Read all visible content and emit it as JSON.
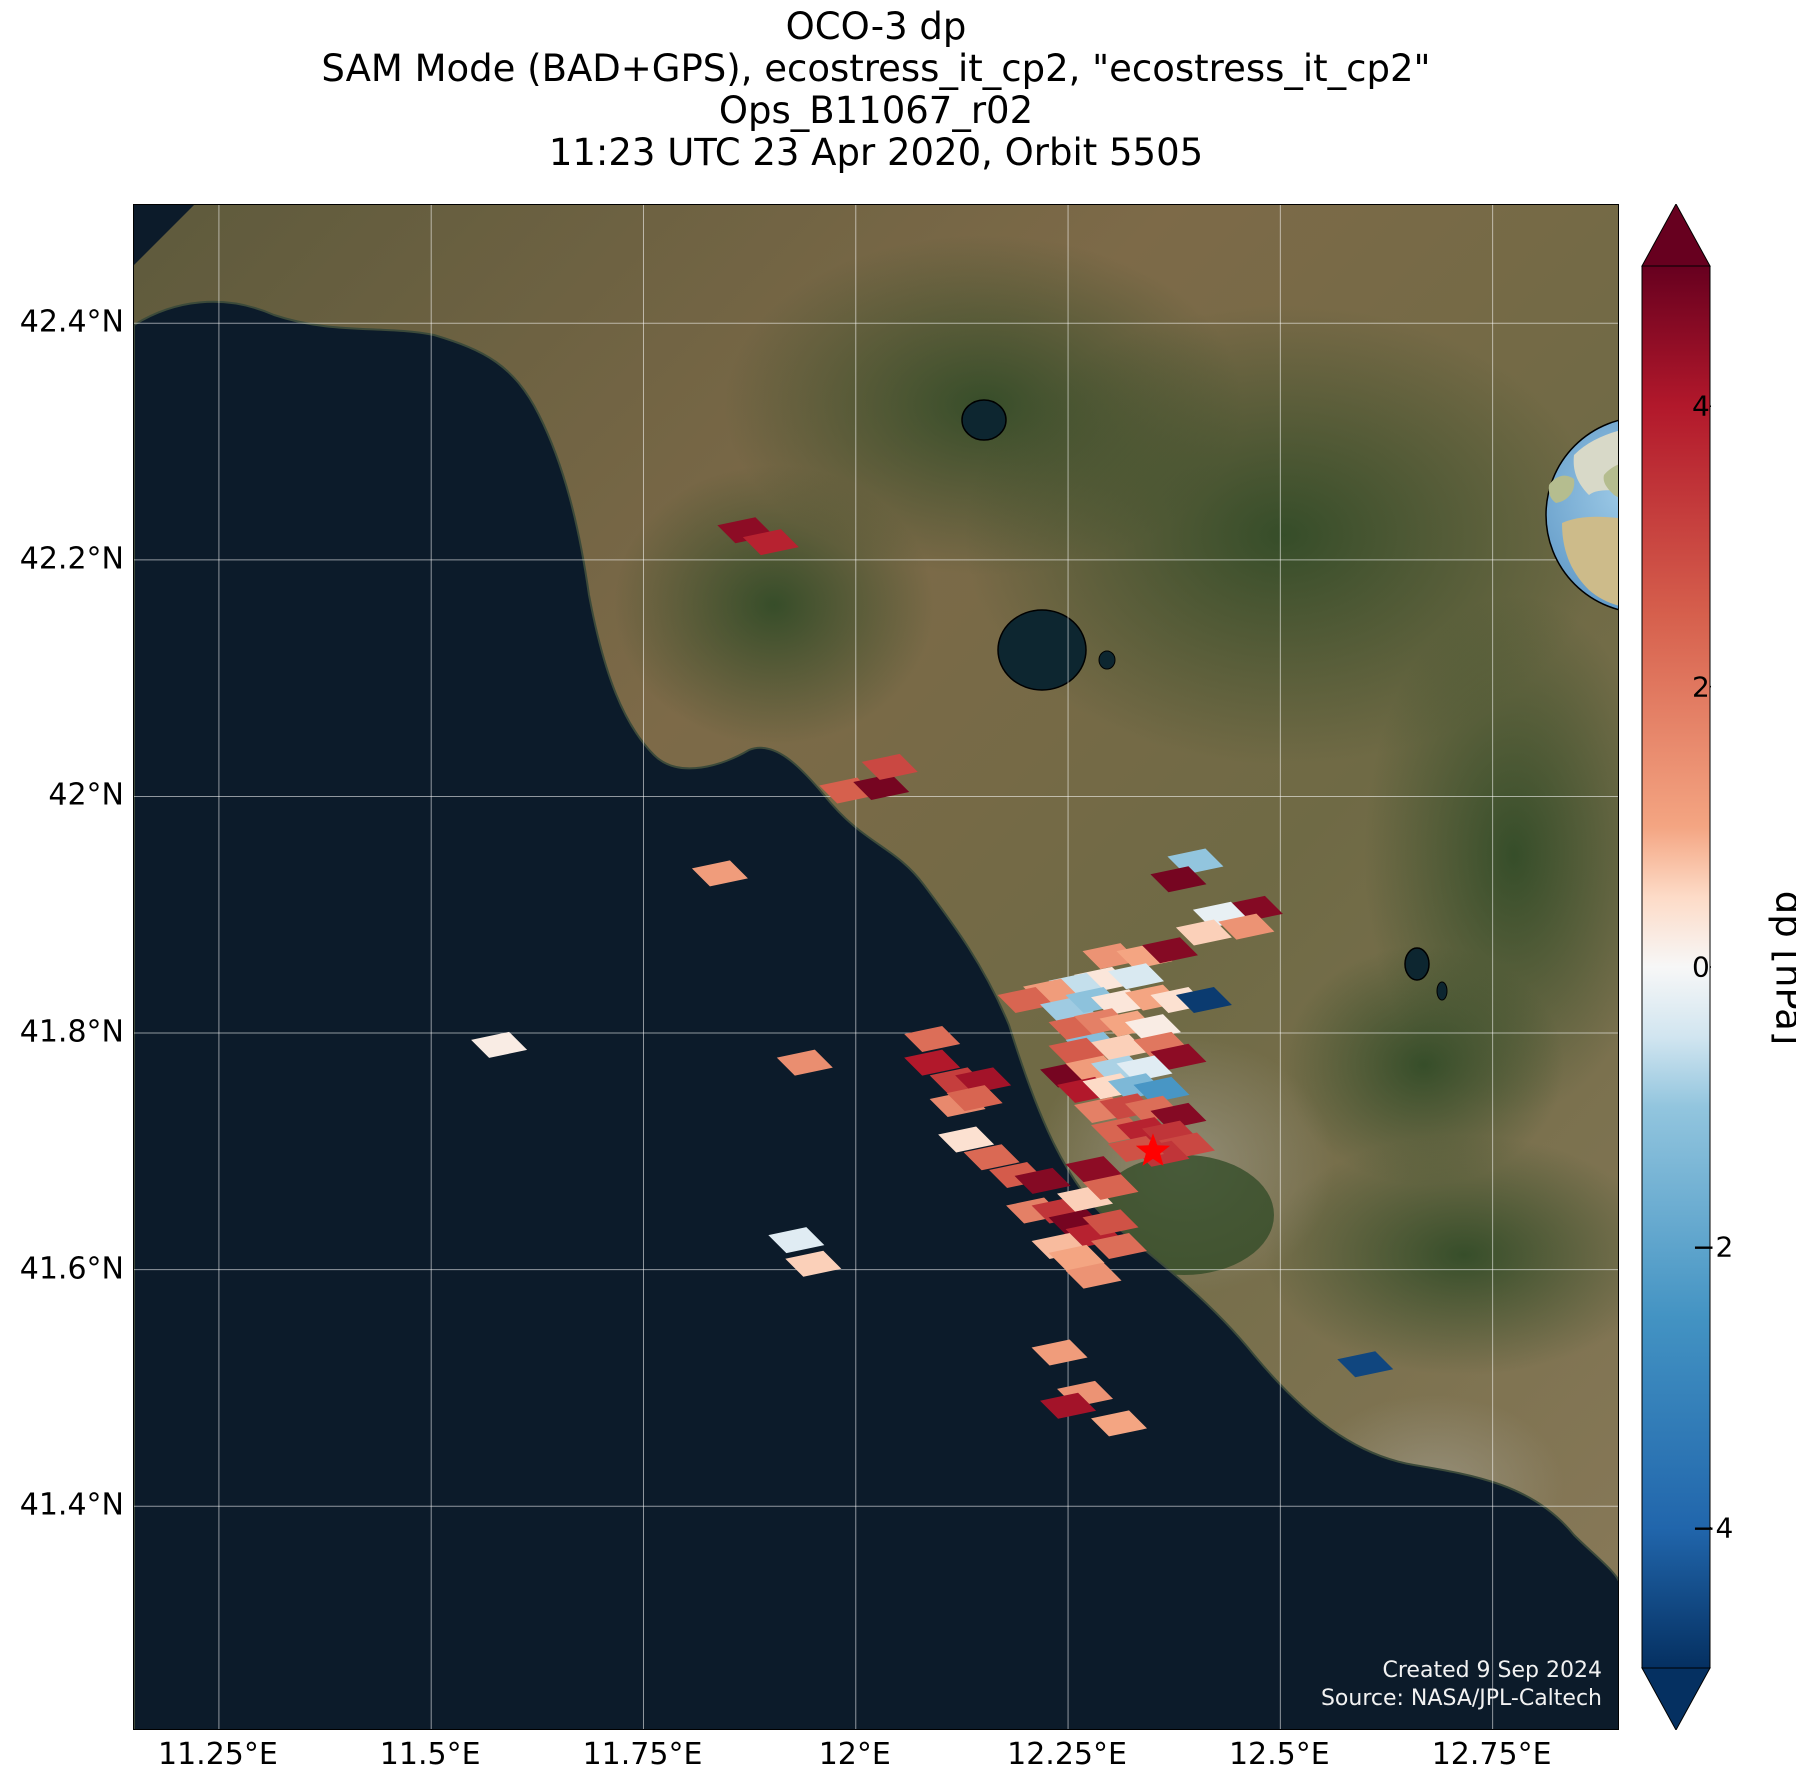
{
  "title": {
    "line1": "OCO-3 dp",
    "line2": "SAM Mode (BAD+GPS), ecostress_it_cp2, \"ecostress_it_cp2\"",
    "line3": "Ops_B11067_r02",
    "line4": "11:23 UTC 23 Apr 2020, Orbit 5505"
  },
  "map": {
    "lon_range": [
      11.15,
      12.9
    ],
    "lat_range": [
      41.21,
      42.5
    ],
    "x_ticks": [
      {
        "value": 11.25,
        "label": "11.25°E"
      },
      {
        "value": 11.5,
        "label": "11.5°E"
      },
      {
        "value": 11.75,
        "label": "11.75°E"
      },
      {
        "value": 12.0,
        "label": "12°E"
      },
      {
        "value": 12.25,
        "label": "12.25°E"
      },
      {
        "value": 12.5,
        "label": "12.5°E"
      },
      {
        "value": 12.75,
        "label": "12.75°E"
      }
    ],
    "y_ticks": [
      {
        "value": 41.4,
        "label": "41.4°N"
      },
      {
        "value": 41.6,
        "label": "41.6°N"
      },
      {
        "value": 41.8,
        "label": "41.8°N"
      },
      {
        "value": 42.0,
        "label": "42°N"
      },
      {
        "value": 42.2,
        "label": "42.2°N"
      },
      {
        "value": 42.4,
        "label": "42.4°N"
      }
    ],
    "gridlines": true,
    "target_marker": {
      "lon": 12.35,
      "lat": 41.7,
      "color": "#ff0000",
      "icon": "star-icon"
    },
    "sea_color": "#0c1b2a",
    "land_color": "#7a6b4a"
  },
  "credit": {
    "line1": "Created 9 Sep 2024",
    "line2": "Source: NASA/JPL-Caltech"
  },
  "colorbar": {
    "label": "dp [hPa]",
    "range": [
      -5,
      5
    ],
    "cmap": "RdBu_r",
    "extend": "both",
    "ticks": [
      {
        "value": 4,
        "label": "4"
      },
      {
        "value": 2,
        "label": "2"
      },
      {
        "value": 0,
        "label": "0"
      },
      {
        "value": -2,
        "label": "−2"
      },
      {
        "value": -4,
        "label": "−4"
      }
    ]
  },
  "chart_data": {
    "type": "heatmap",
    "description_units": "footprint dp values in hPa at lon/lat",
    "points": [
      {
        "lon": 11.87,
        "lat": 42.225,
        "value": 4.5
      },
      {
        "lon": 11.9,
        "lat": 42.215,
        "value": 3.8
      },
      {
        "lon": 11.99,
        "lat": 42.005,
        "value": 2.5
      },
      {
        "lon": 12.03,
        "lat": 42.008,
        "value": 4.8
      },
      {
        "lon": 12.04,
        "lat": 42.025,
        "value": 3.0
      },
      {
        "lon": 11.84,
        "lat": 41.935,
        "value": 1.2
      },
      {
        "lon": 11.58,
        "lat": 41.79,
        "value": 0.2
      },
      {
        "lon": 11.94,
        "lat": 41.775,
        "value": 1.5
      },
      {
        "lon": 12.09,
        "lat": 41.795,
        "value": 2.2
      },
      {
        "lon": 12.09,
        "lat": 41.775,
        "value": 4.0
      },
      {
        "lon": 12.12,
        "lat": 41.76,
        "value": 3.2
      },
      {
        "lon": 12.15,
        "lat": 41.76,
        "value": 4.2
      },
      {
        "lon": 12.12,
        "lat": 41.74,
        "value": 1.6
      },
      {
        "lon": 12.14,
        "lat": 41.745,
        "value": 2.4
      },
      {
        "lon": 12.13,
        "lat": 41.71,
        "value": 0.4
      },
      {
        "lon": 12.16,
        "lat": 41.695,
        "value": 2.3
      },
      {
        "lon": 12.19,
        "lat": 41.68,
        "value": 2.6
      },
      {
        "lon": 12.22,
        "lat": 41.675,
        "value": 4.6
      },
      {
        "lon": 12.21,
        "lat": 41.65,
        "value": 1.8
      },
      {
        "lon": 12.24,
        "lat": 41.65,
        "value": 3.4
      },
      {
        "lon": 12.27,
        "lat": 41.66,
        "value": 0.6
      },
      {
        "lon": 12.3,
        "lat": 41.67,
        "value": 2.4
      },
      {
        "lon": 12.28,
        "lat": 41.685,
        "value": 4.5
      },
      {
        "lon": 12.26,
        "lat": 41.64,
        "value": 4.8
      },
      {
        "lon": 12.28,
        "lat": 41.63,
        "value": 3.8
      },
      {
        "lon": 12.3,
        "lat": 41.64,
        "value": 2.8
      },
      {
        "lon": 12.31,
        "lat": 41.62,
        "value": 2.2
      },
      {
        "lon": 12.24,
        "lat": 41.62,
        "value": 0.8
      },
      {
        "lon": 12.26,
        "lat": 41.61,
        "value": 1.0
      },
      {
        "lon": 12.28,
        "lat": 41.595,
        "value": 1.4
      },
      {
        "lon": 11.93,
        "lat": 41.625,
        "value": -0.3
      },
      {
        "lon": 11.95,
        "lat": 41.605,
        "value": 0.6
      },
      {
        "lon": 12.24,
        "lat": 41.53,
        "value": 1.2
      },
      {
        "lon": 12.27,
        "lat": 41.495,
        "value": 1.4
      },
      {
        "lon": 12.25,
        "lat": 41.485,
        "value": 4.2
      },
      {
        "lon": 12.31,
        "lat": 41.47,
        "value": 1.0
      },
      {
        "lon": 12.6,
        "lat": 41.52,
        "value": -4.6
      },
      {
        "lon": 12.4,
        "lat": 41.945,
        "value": -1.0
      },
      {
        "lon": 12.38,
        "lat": 41.93,
        "value": 4.8
      },
      {
        "lon": 12.47,
        "lat": 41.905,
        "value": 4.6
      },
      {
        "lon": 12.43,
        "lat": 41.9,
        "value": -0.2
      },
      {
        "lon": 12.46,
        "lat": 41.89,
        "value": 1.4
      },
      {
        "lon": 12.41,
        "lat": 41.885,
        "value": 0.6
      },
      {
        "lon": 12.3,
        "lat": 41.865,
        "value": 1.4
      },
      {
        "lon": 12.34,
        "lat": 41.865,
        "value": 1.0
      },
      {
        "lon": 12.37,
        "lat": 41.87,
        "value": 4.6
      },
      {
        "lon": 12.29,
        "lat": 41.845,
        "value": 0.3
      },
      {
        "lon": 12.33,
        "lat": 41.848,
        "value": -0.4
      },
      {
        "lon": 12.26,
        "lat": 41.84,
        "value": -0.6
      },
      {
        "lon": 12.23,
        "lat": 41.835,
        "value": 1.2
      },
      {
        "lon": 12.2,
        "lat": 41.828,
        "value": 2.4
      },
      {
        "lon": 12.25,
        "lat": 41.82,
        "value": -0.9
      },
      {
        "lon": 12.28,
        "lat": 41.828,
        "value": -1.1
      },
      {
        "lon": 12.31,
        "lat": 41.826,
        "value": 0.3
      },
      {
        "lon": 12.35,
        "lat": 41.83,
        "value": 1.0
      },
      {
        "lon": 12.38,
        "lat": 41.828,
        "value": 0.4
      },
      {
        "lon": 12.41,
        "lat": 41.828,
        "value": -4.8
      },
      {
        "lon": 12.26,
        "lat": 41.805,
        "value": 2.4
      },
      {
        "lon": 12.29,
        "lat": 41.81,
        "value": 1.8
      },
      {
        "lon": 12.32,
        "lat": 41.808,
        "value": 1.0
      },
      {
        "lon": 12.35,
        "lat": 41.805,
        "value": 0.2
      },
      {
        "lon": 12.28,
        "lat": 41.79,
        "value": -1.2
      },
      {
        "lon": 12.31,
        "lat": 41.788,
        "value": 0.6
      },
      {
        "lon": 12.36,
        "lat": 41.79,
        "value": 2.0
      },
      {
        "lon": 12.38,
        "lat": 41.78,
        "value": 4.5
      },
      {
        "lon": 12.26,
        "lat": 41.785,
        "value": 2.6
      },
      {
        "lon": 12.25,
        "lat": 41.765,
        "value": 4.8
      },
      {
        "lon": 12.28,
        "lat": 41.77,
        "value": 1.2
      },
      {
        "lon": 12.31,
        "lat": 41.77,
        "value": -0.8
      },
      {
        "lon": 12.34,
        "lat": 41.77,
        "value": -0.3
      },
      {
        "lon": 12.27,
        "lat": 41.752,
        "value": 4.0
      },
      {
        "lon": 12.3,
        "lat": 41.755,
        "value": 0.5
      },
      {
        "lon": 12.33,
        "lat": 41.755,
        "value": -1.4
      },
      {
        "lon": 12.36,
        "lat": 41.752,
        "value": -2.4
      },
      {
        "lon": 12.29,
        "lat": 41.735,
        "value": 1.8
      },
      {
        "lon": 12.32,
        "lat": 41.738,
        "value": 3.0
      },
      {
        "lon": 12.35,
        "lat": 41.736,
        "value": 2.2
      },
      {
        "lon": 12.38,
        "lat": 41.73,
        "value": 4.6
      },
      {
        "lon": 12.31,
        "lat": 41.718,
        "value": 2.4
      },
      {
        "lon": 12.34,
        "lat": 41.718,
        "value": 3.8
      },
      {
        "lon": 12.37,
        "lat": 41.715,
        "value": 3.4
      },
      {
        "lon": 12.39,
        "lat": 41.705,
        "value": 3.0
      },
      {
        "lon": 12.36,
        "lat": 41.698,
        "value": 3.4
      },
      {
        "lon": 12.33,
        "lat": 41.702,
        "value": 2.8
      }
    ]
  }
}
